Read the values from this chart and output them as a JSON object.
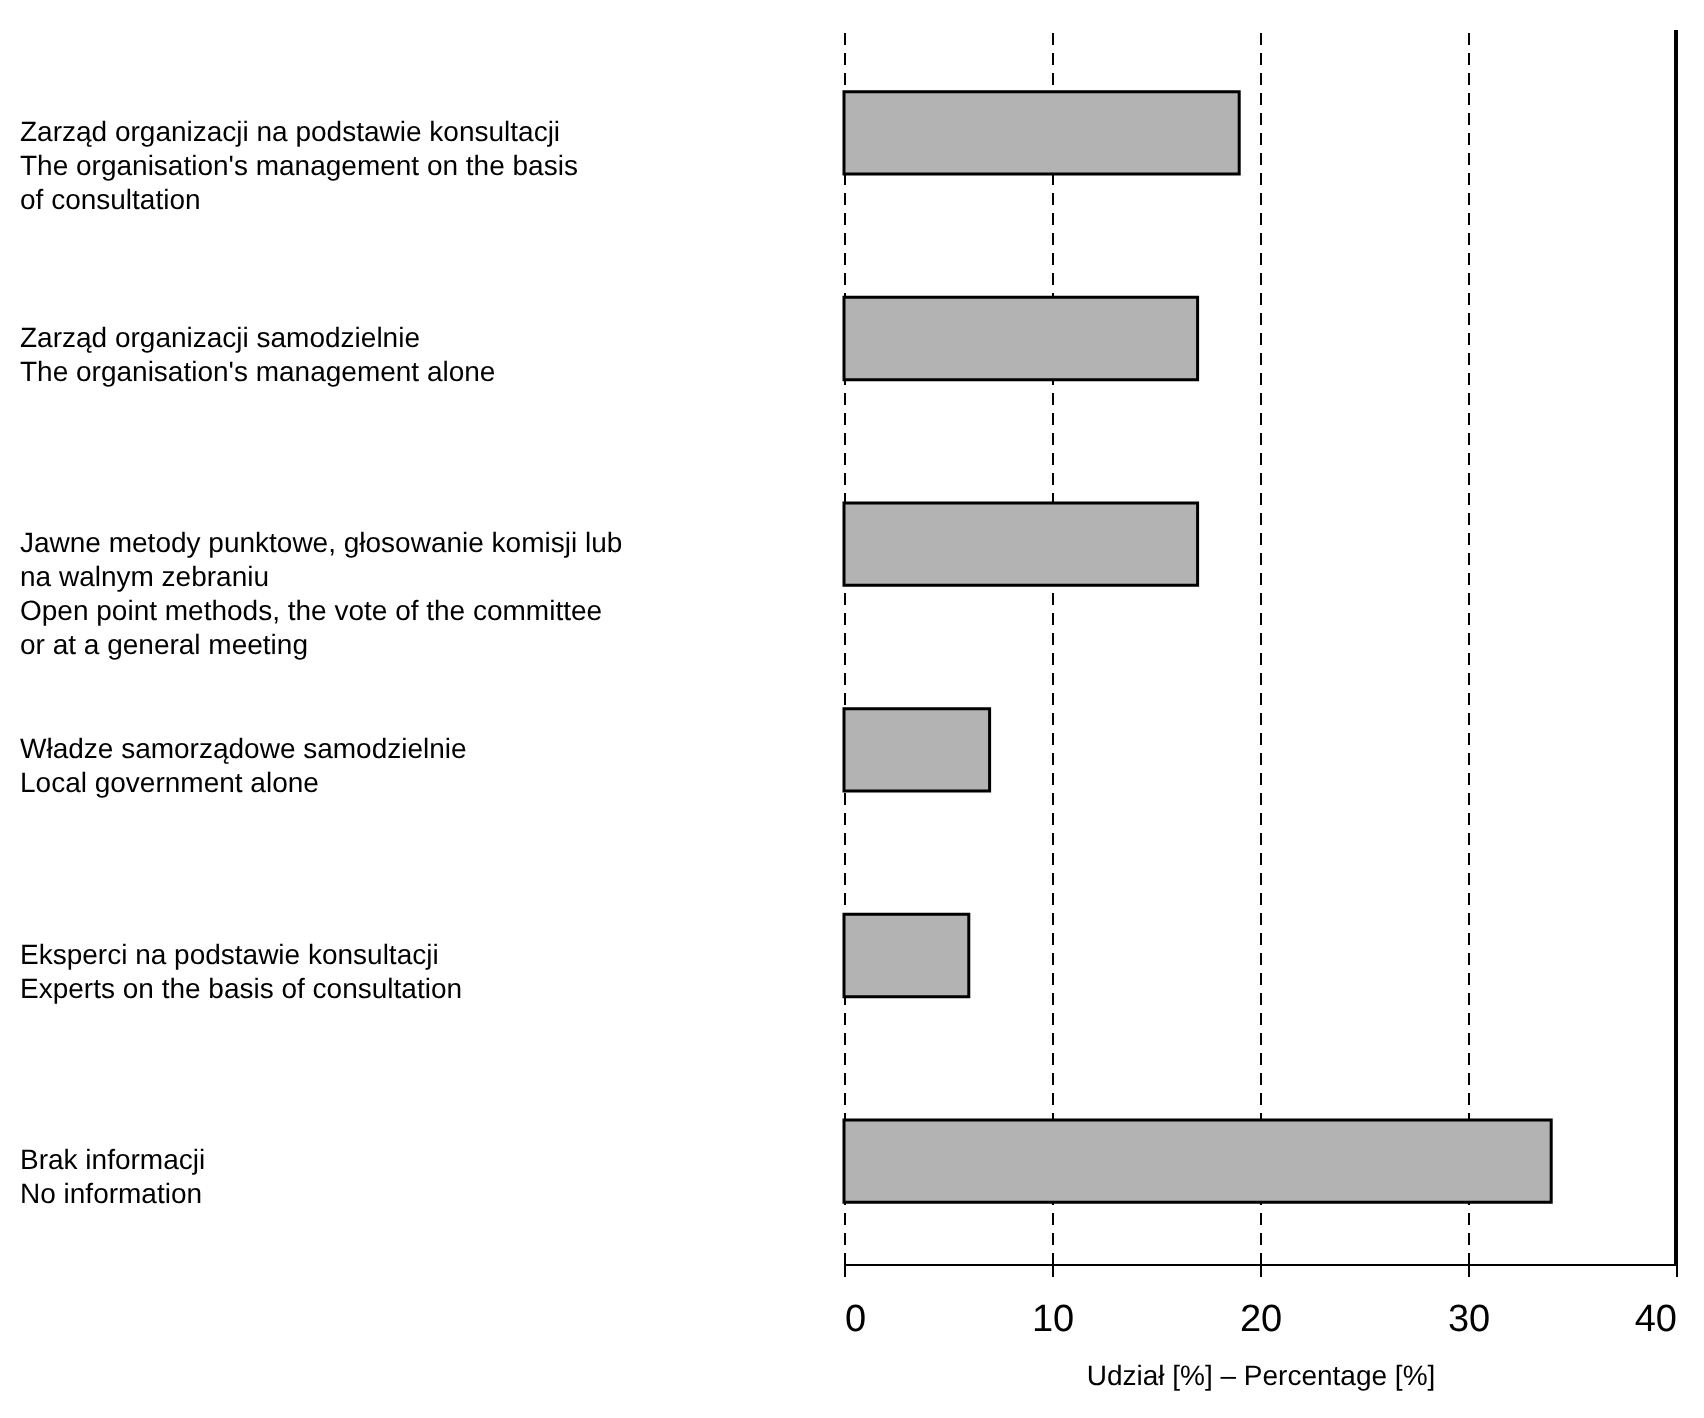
{
  "chart_data": {
    "type": "bar",
    "orientation": "horizontal",
    "xlabel": "Udział [%] – Percentage [%]",
    "categories": [
      "Zarząd organizacji na podstawie konsultacji\nThe organisation's management on the basis\nof consultation",
      "Zarząd organizacji samodzielnie\nThe organisation's management alone",
      "Jawne metody punktowe, głosowanie komisji lub\nna walnym zebraniu\nOpen point methods, the vote of the committee\nor at a general meeting",
      "Władze samorządowe samodzielnie\nLocal government alone",
      "Eksperci na podstawie konsultacji\nExperts on the basis of consultation",
      "Brak informacji\nNo information"
    ],
    "values": [
      19,
      17,
      17,
      7,
      6,
      34
    ],
    "color": "#b3b3b3",
    "xlim": [
      0,
      40
    ],
    "xticks": [
      0,
      10,
      20,
      30,
      40
    ],
    "grid": "x"
  }
}
